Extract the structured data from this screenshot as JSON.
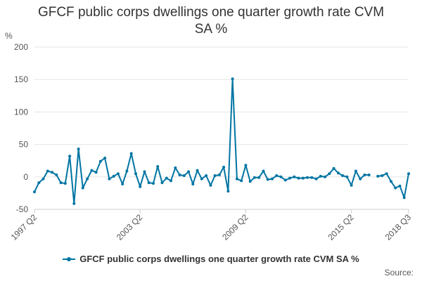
{
  "chart_data": {
    "type": "line",
    "title": "GFCF public corps dwellings one quarter growth rate CVM SA %",
    "unit_label": "%",
    "ylim": [
      -50,
      200
    ],
    "y_ticks": [
      -50,
      0,
      50,
      100,
      150,
      200
    ],
    "x_tick_labels": [
      {
        "index": 0,
        "label": "1997 Q2"
      },
      {
        "index": 24,
        "label": "2003 Q2"
      },
      {
        "index": 48,
        "label": "2009 Q2"
      },
      {
        "index": 72,
        "label": "2015 Q2"
      },
      {
        "index": 85,
        "label": "2018 Q3"
      }
    ],
    "grid": "horizontal",
    "legend_position": "bottom",
    "series": [
      {
        "name": "GFCF public corps dwellings one quarter growth rate CVM SA %",
        "color": "#0075a3",
        "values": [
          -23,
          -9,
          -3,
          9,
          7,
          3,
          -9,
          -10,
          32,
          -41,
          43,
          -17,
          -3,
          10,
          7,
          24,
          29,
          -3,
          1,
          5,
          -11,
          9,
          36,
          5,
          -15,
          8,
          -9,
          -10,
          16,
          -9,
          -2,
          -6,
          14,
          3,
          2,
          8,
          -11,
          10,
          -3,
          2,
          -13,
          2,
          3,
          15,
          -22,
          151,
          -3,
          -6,
          18,
          -7,
          -1,
          -1,
          9,
          -4,
          -3,
          2,
          0,
          -5,
          -2,
          0,
          -2,
          -2,
          -1,
          -1,
          -3,
          1,
          0,
          5,
          13,
          6,
          2,
          0,
          -13,
          9,
          -3,
          3,
          3,
          null,
          1,
          2,
          5,
          -7,
          -17,
          -14,
          -32,
          5
        ]
      }
    ]
  },
  "legend": {
    "label": "GFCF public corps dwellings one quarter growth rate CVM SA %"
  },
  "footer": {
    "source": "Source:"
  }
}
